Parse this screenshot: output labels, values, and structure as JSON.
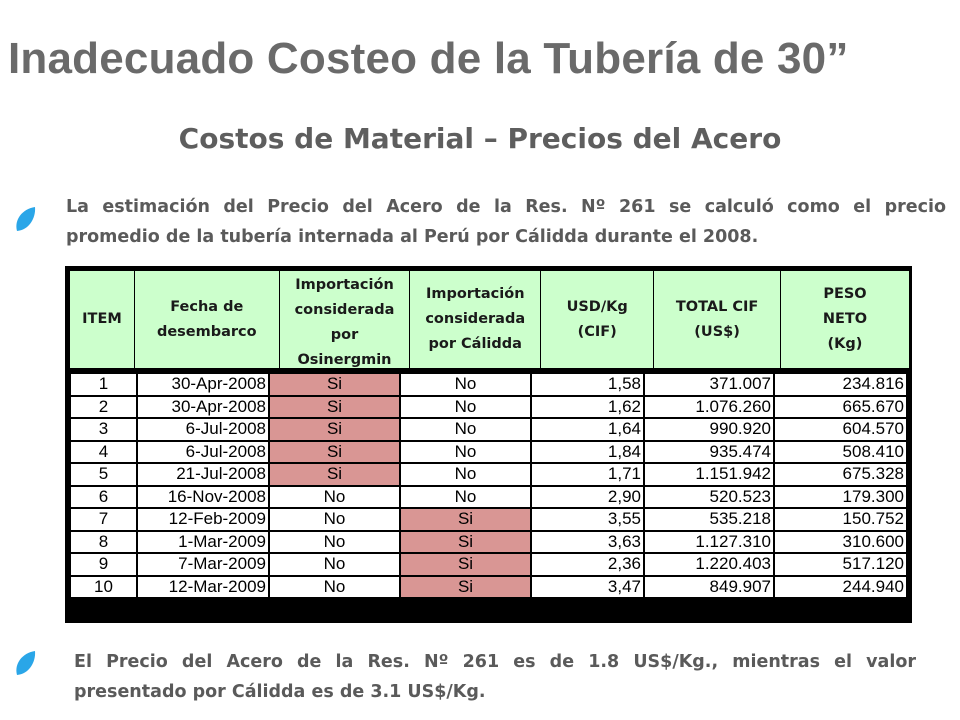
{
  "title": "Inadecuado Costeo de la Tubería de 30”",
  "subtitle": "Costos de Material – Precios del Acero",
  "paragraph1": {
    "line1": "La estimación del Precio del Acero de la Res. Nº 261 se calculó como el precio",
    "line2": "promedio de la tubería internada al Perú por Cálidda durante el 2008."
  },
  "paragraph2": {
    "line1": "El Precio del Acero de la Res. Nº 261 es de 1.8 US$/Kg., mientras el valor",
    "line2": "presentado por Cálidda es de 3.1 US$/Kg."
  },
  "colors": {
    "bullet": "#2aa6e8",
    "header_bg": "#ccffcc",
    "highlight": "#d99694"
  },
  "table": {
    "headers": [
      "ITEM",
      "Fecha de desembarco",
      "Importación considerada por Osinergmin",
      "Importación considerada por Cálidda",
      "USD/Kg (CIF)",
      "TOTAL CIF (US$)",
      "PESO NETO (Kg)"
    ],
    "rows": [
      {
        "item": "1",
        "fecha": "30-Apr-2008",
        "osinergmin": "Si",
        "calidda": "No",
        "usd_kg": "1,58",
        "total_cif": "371.007",
        "peso_neto": "234.816"
      },
      {
        "item": "2",
        "fecha": "30-Apr-2008",
        "osinergmin": "Si",
        "calidda": "No",
        "usd_kg": "1,62",
        "total_cif": "1.076.260",
        "peso_neto": "665.670"
      },
      {
        "item": "3",
        "fecha": "6-Jul-2008",
        "osinergmin": "Si",
        "calidda": "No",
        "usd_kg": "1,64",
        "total_cif": "990.920",
        "peso_neto": "604.570"
      },
      {
        "item": "4",
        "fecha": "6-Jul-2008",
        "osinergmin": "Si",
        "calidda": "No",
        "usd_kg": "1,84",
        "total_cif": "935.474",
        "peso_neto": "508.410"
      },
      {
        "item": "5",
        "fecha": "21-Jul-2008",
        "osinergmin": "Si",
        "calidda": "No",
        "usd_kg": "1,71",
        "total_cif": "1.151.942",
        "peso_neto": "675.328"
      },
      {
        "item": "6",
        "fecha": "16-Nov-2008",
        "osinergmin": "No",
        "calidda": "No",
        "usd_kg": "2,90",
        "total_cif": "520.523",
        "peso_neto": "179.300"
      },
      {
        "item": "7",
        "fecha": "12-Feb-2009",
        "osinergmin": "No",
        "calidda": "Si",
        "usd_kg": "3,55",
        "total_cif": "535.218",
        "peso_neto": "150.752"
      },
      {
        "item": "8",
        "fecha": "1-Mar-2009",
        "osinergmin": "No",
        "calidda": "Si",
        "usd_kg": "3,63",
        "total_cif": "1.127.310",
        "peso_neto": "310.600"
      },
      {
        "item": "9",
        "fecha": "7-Mar-2009",
        "osinergmin": "No",
        "calidda": "Si",
        "usd_kg": "2,36",
        "total_cif": "1.220.403",
        "peso_neto": "517.120"
      },
      {
        "item": "10",
        "fecha": "12-Mar-2009",
        "osinergmin": "No",
        "calidda": "Si",
        "usd_kg": "3,47",
        "total_cif": "849.907",
        "peso_neto": "244.940"
      }
    ]
  }
}
